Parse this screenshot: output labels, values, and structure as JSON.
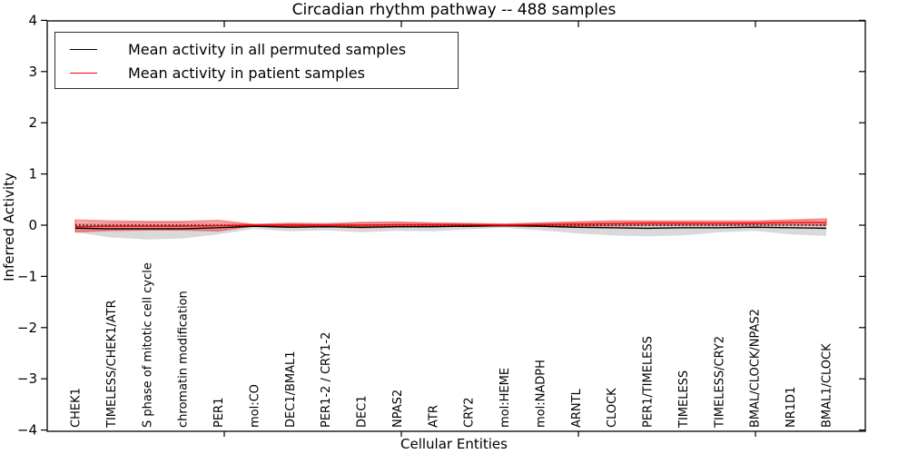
{
  "chart_data": {
    "type": "line",
    "title": "Circadian rhythm pathway -- 488 samples",
    "xlabel": "Cellular Entities",
    "ylabel": "Inferred Activity",
    "ylim": [
      -4,
      4
    ],
    "yticks": [
      4,
      3,
      2,
      1,
      0,
      -1,
      -2,
      -3,
      -4
    ],
    "grid": false,
    "legend_position": "upper left",
    "categories": [
      "CHEK1",
      "TIMELESS/CHEK1/ATR",
      "S phase of mitotic cell cycle",
      "chromatin modification",
      "PER1",
      "mol:CO",
      "DEC1/BMAL1",
      "PER1-2 / CRY1-2",
      "DEC1",
      "NPAS2",
      "ATR",
      "CRY2",
      "mol:HEME",
      "mol:NADPH",
      "ARNTL",
      "CLOCK",
      "PER1/TIMELESS",
      "TIMELESS",
      "TIMELESS/CRY2",
      "BMAL/CLOCK/NPAS2",
      "NR1D1",
      "BMAL1/CLOCK"
    ],
    "series": [
      {
        "name": "Mean activity in all permuted samples",
        "color": "#000000",
        "style": "solid",
        "values": [
          -0.06,
          -0.07,
          -0.07,
          -0.07,
          -0.05,
          -0.02,
          -0.04,
          -0.03,
          -0.04,
          -0.03,
          -0.03,
          -0.02,
          -0.01,
          -0.02,
          -0.04,
          -0.05,
          -0.06,
          -0.05,
          -0.05,
          -0.04,
          -0.05,
          -0.06
        ]
      },
      {
        "name": "Mean activity in patient samples",
        "color": "#ff0000",
        "style": "solid",
        "values": [
          -0.03,
          -0.02,
          -0.02,
          -0.02,
          -0.01,
          0.0,
          0.0,
          0.0,
          0.0,
          0.01,
          0.01,
          0.01,
          0.0,
          0.01,
          0.02,
          0.03,
          0.04,
          0.04,
          0.04,
          0.04,
          0.05,
          0.05
        ]
      }
    ],
    "bands": [
      {
        "name": "permuted-samples-range",
        "color": "#000000",
        "alpha": 0.15,
        "lo": [
          -0.14,
          -0.24,
          -0.28,
          -0.26,
          -0.18,
          -0.07,
          -0.12,
          -0.1,
          -0.14,
          -0.11,
          -0.12,
          -0.08,
          -0.05,
          -0.1,
          -0.16,
          -0.2,
          -0.22,
          -0.2,
          -0.14,
          -0.11,
          -0.18,
          -0.21
        ],
        "hi": [
          0.05,
          0.06,
          0.06,
          0.06,
          0.05,
          0.03,
          0.05,
          0.05,
          0.06,
          0.06,
          0.05,
          0.04,
          0.03,
          0.05,
          0.07,
          0.08,
          0.08,
          0.07,
          0.06,
          0.07,
          0.09,
          0.1
        ]
      },
      {
        "name": "patient-samples-range",
        "color": "#ff0000",
        "alpha": 0.28,
        "lo": [
          -0.13,
          -0.1,
          -0.09,
          -0.09,
          -0.11,
          -0.01,
          -0.03,
          -0.02,
          -0.05,
          -0.03,
          -0.02,
          -0.02,
          -0.01,
          -0.02,
          -0.02,
          -0.01,
          0.0,
          0.0,
          0.0,
          0.01,
          0.01,
          0.0
        ],
        "hi": [
          0.1,
          0.08,
          0.07,
          0.07,
          0.09,
          0.01,
          0.03,
          0.02,
          0.05,
          0.06,
          0.04,
          0.03,
          0.02,
          0.04,
          0.06,
          0.08,
          0.08,
          0.08,
          0.08,
          0.08,
          0.1,
          0.12
        ]
      }
    ],
    "reference_line": {
      "y": 0,
      "style": "dotted",
      "color": "#000000"
    }
  },
  "legend": {
    "entries": [
      {
        "label": "Mean activity in all permuted samples",
        "color": "#000000"
      },
      {
        "label": "Mean activity in patient samples",
        "color": "#ff0000"
      }
    ]
  }
}
